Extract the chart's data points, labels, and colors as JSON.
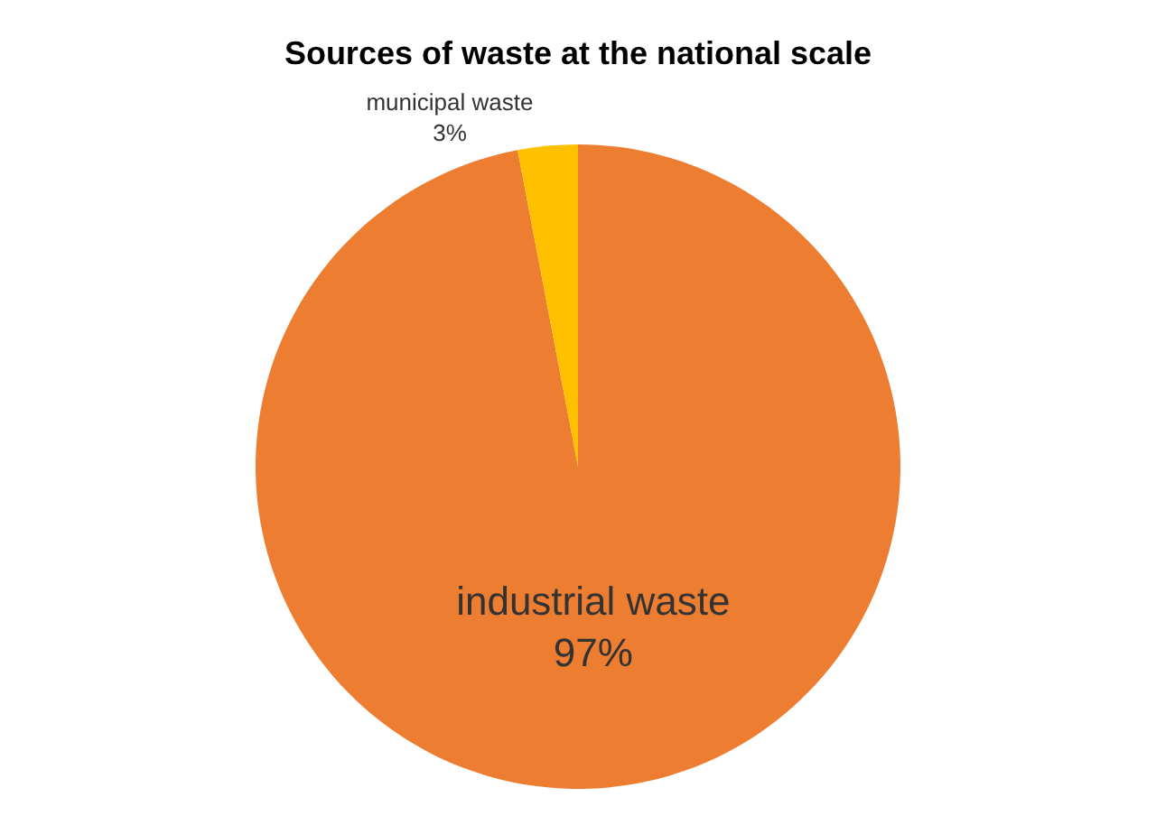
{
  "chart_data": {
    "type": "pie",
    "title": "Sources of waste at the national scale",
    "categories": [
      "industrial waste",
      "municipal waste"
    ],
    "values": [
      97,
      3
    ],
    "value_labels": [
      "97%",
      "3%"
    ],
    "colors": [
      "#ed7d31",
      "#ffc000"
    ],
    "legend": false
  }
}
